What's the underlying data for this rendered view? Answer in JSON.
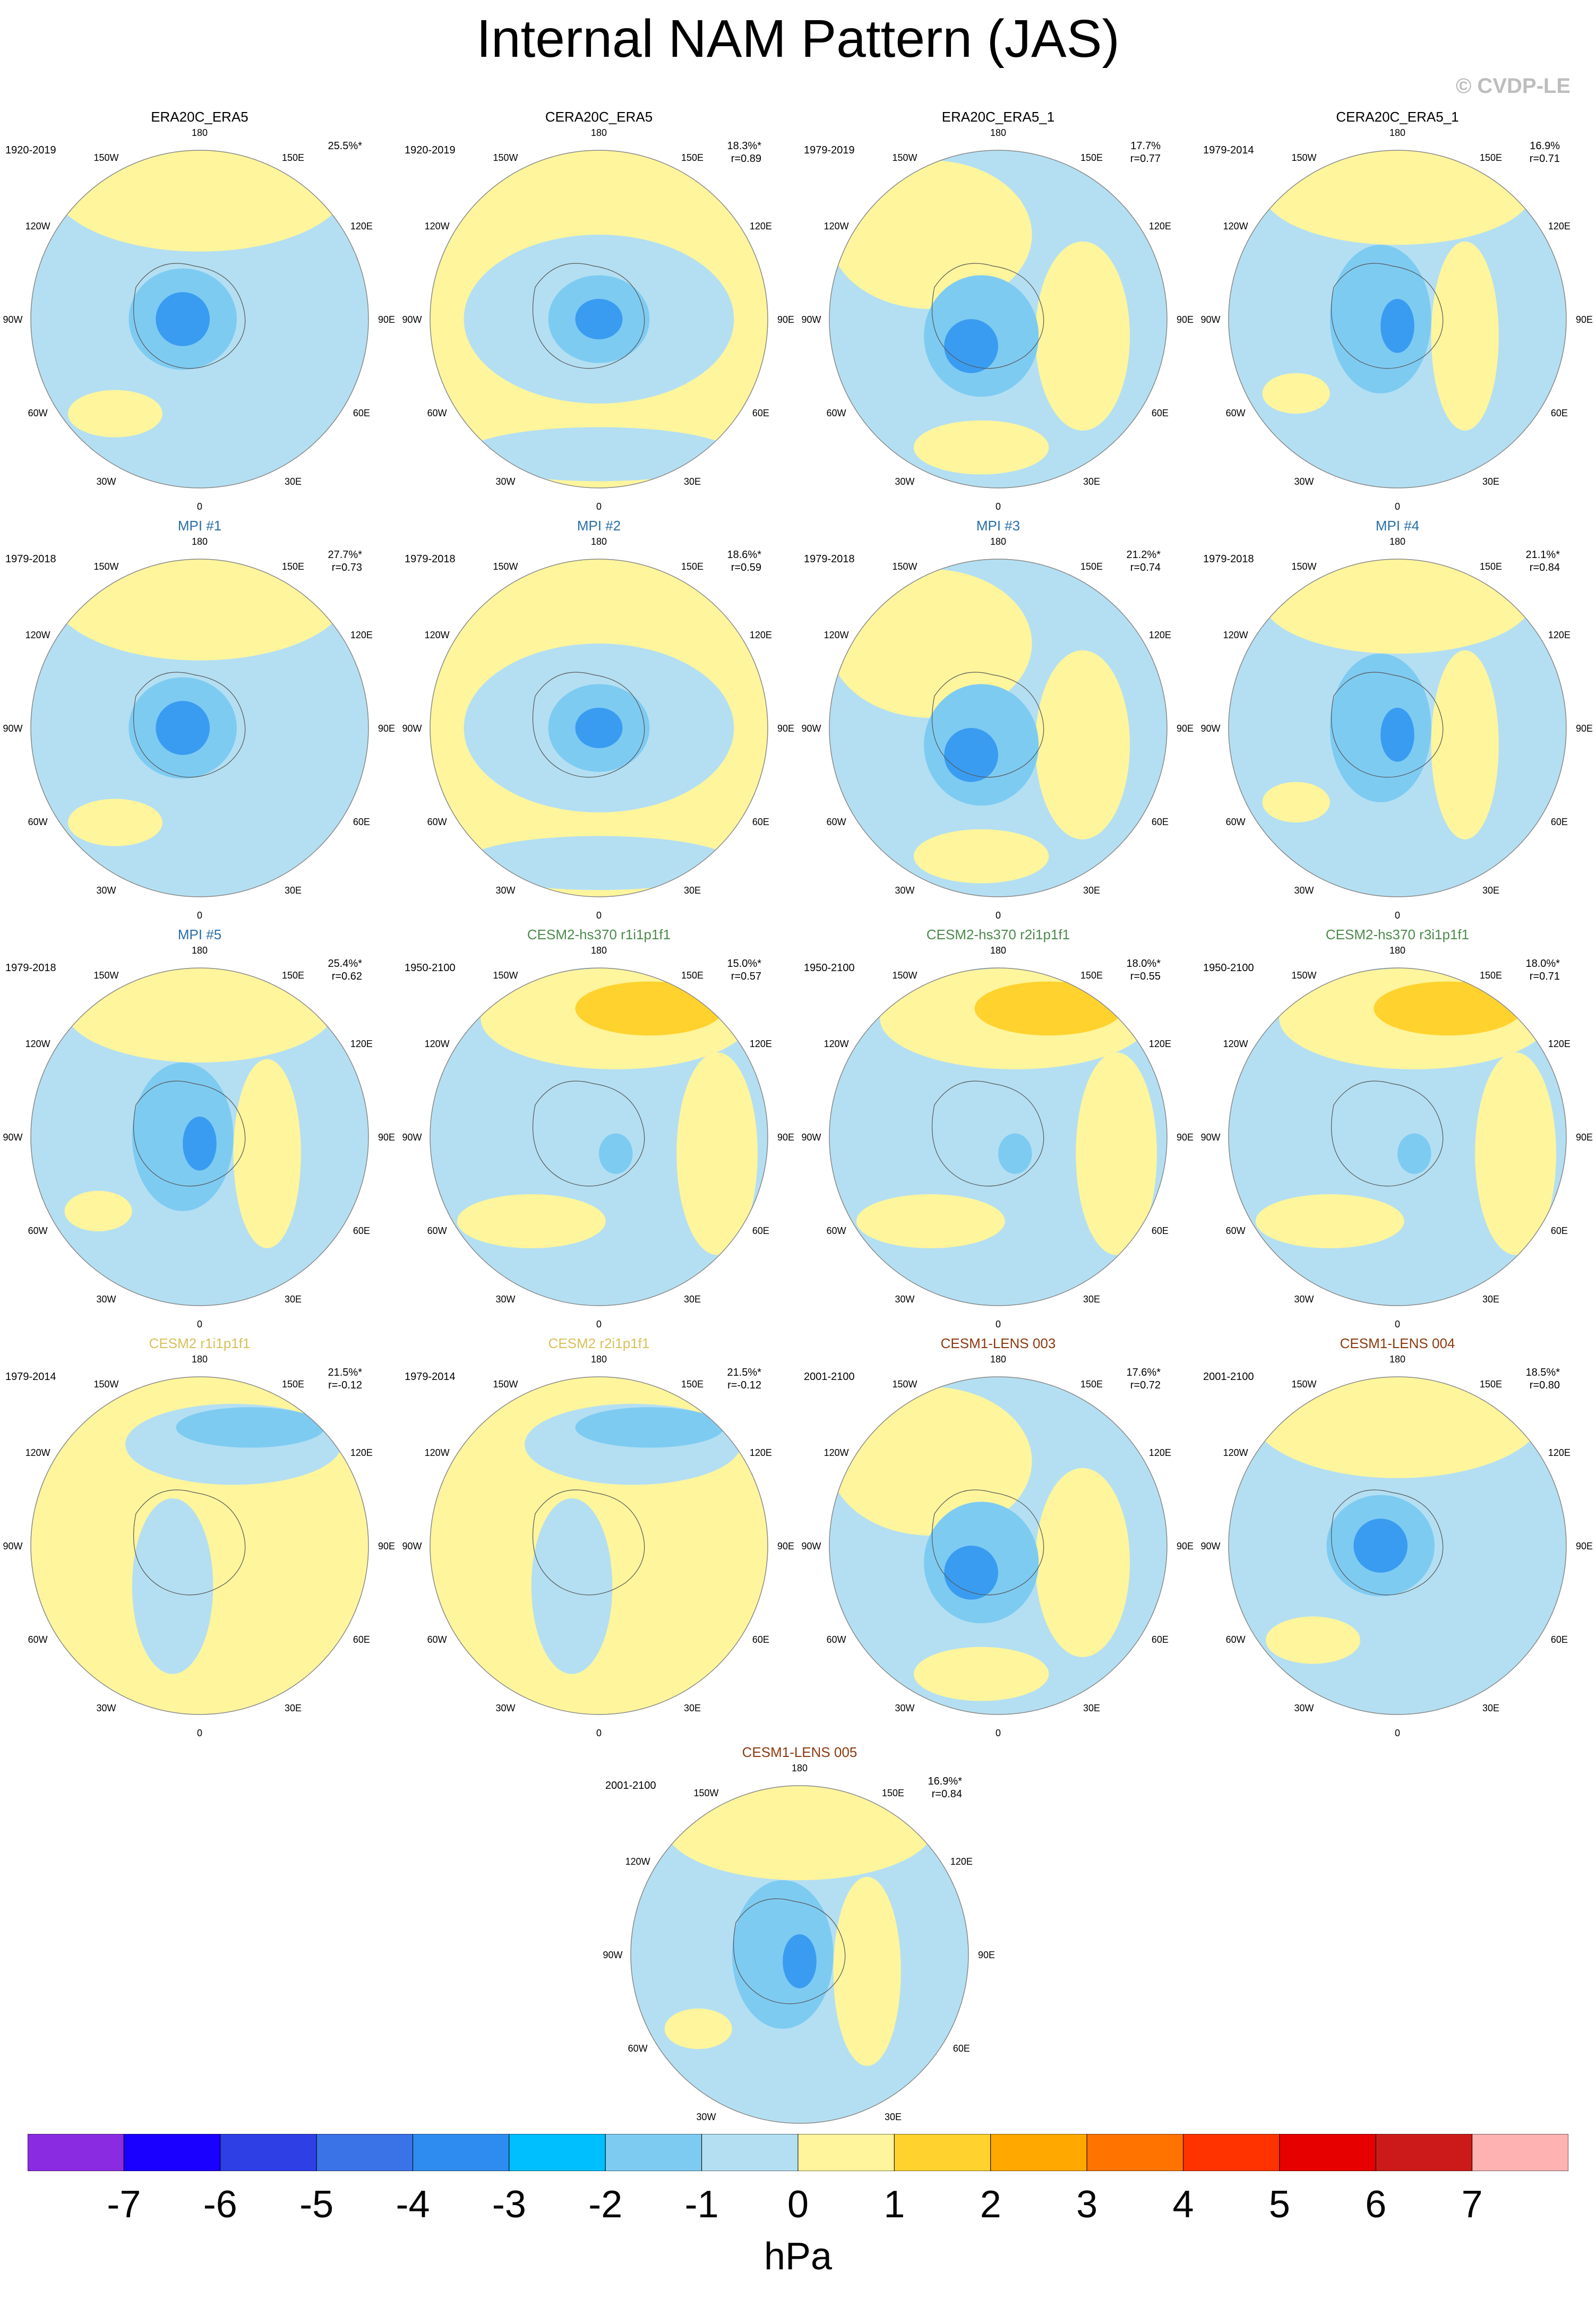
{
  "title": "Internal NAM Pattern (JAS)",
  "credit": "© CVDP-LE",
  "lon_labels": [
    "180",
    "150E",
    "120E",
    "90E",
    "60E",
    "30E",
    "0",
    "30W",
    "60W",
    "90W",
    "120W",
    "150W"
  ],
  "panels": [
    {
      "title": "ERA20C_ERA5",
      "title_color": "#000000",
      "period": "1920-2019",
      "pct": "25.5%*",
      "r": "",
      "style": 0,
      "dark": false
    },
    {
      "title": "CERA20C_ERA5",
      "title_color": "#000000",
      "period": "1920-2019",
      "pct": "18.3%*",
      "r": "r=0.89",
      "style": 1,
      "dark": false
    },
    {
      "title": "ERA20C_ERA5_1",
      "title_color": "#000000",
      "period": "1979-2019",
      "pct": "17.7%",
      "r": "r=0.77",
      "style": 2,
      "dark": false
    },
    {
      "title": "CERA20C_ERA5_1",
      "title_color": "#000000",
      "period": "1979-2014",
      "pct": "16.9%",
      "r": "r=0.71",
      "style": 3,
      "dark": false
    },
    {
      "title": "MPI #1",
      "title_color": "#2a6fa8",
      "period": "1979-2018",
      "pct": "27.7%*",
      "r": "r=0.73",
      "style": 0,
      "dark": false
    },
    {
      "title": "MPI #2",
      "title_color": "#2a6fa8",
      "period": "1979-2018",
      "pct": "18.6%*",
      "r": "r=0.59",
      "style": 1,
      "dark": false
    },
    {
      "title": "MPI #3",
      "title_color": "#2a6fa8",
      "period": "1979-2018",
      "pct": "21.2%*",
      "r": "r=0.74",
      "style": 2,
      "dark": false
    },
    {
      "title": "MPI #4",
      "title_color": "#2a6fa8",
      "period": "1979-2018",
      "pct": "21.1%*",
      "r": "r=0.84",
      "style": 3,
      "dark": false
    },
    {
      "title": "MPI #5",
      "title_color": "#2a6fa8",
      "period": "1979-2018",
      "pct": "25.4%*",
      "r": "r=0.62",
      "style": 3,
      "dark": false
    },
    {
      "title": "CESM2-hs370 r1i1p1f1",
      "title_color": "#4c8a4c",
      "period": "1950-2100",
      "pct": "15.0%*",
      "r": "r=0.57",
      "style": 4,
      "dark": false
    },
    {
      "title": "CESM2-hs370 r2i1p1f1",
      "title_color": "#4c8a4c",
      "period": "1950-2100",
      "pct": "18.0%*",
      "r": "r=0.55",
      "style": 4,
      "dark": false
    },
    {
      "title": "CESM2-hs370 r3i1p1f1",
      "title_color": "#4c8a4c",
      "period": "1950-2100",
      "pct": "18.0%*",
      "r": "r=0.71",
      "style": 4,
      "dark": false
    },
    {
      "title": "CESM2 r1i1p1f1",
      "title_color": "#d8c15a",
      "period": "1979-2014",
      "pct": "21.5%*",
      "r": "r=-0.12",
      "style": 5,
      "dark": false
    },
    {
      "title": "CESM2 r2i1p1f1",
      "title_color": "#d8c15a",
      "period": "1979-2014",
      "pct": "21.5%*",
      "r": "r=-0.12",
      "style": 5,
      "dark": false
    },
    {
      "title": "CESM1-LENS 003",
      "title_color": "#8b3a0f",
      "period": "2001-2100",
      "pct": "17.6%*",
      "r": "r=0.72",
      "style": 2,
      "dark": false
    },
    {
      "title": "CESM1-LENS 004",
      "title_color": "#8b3a0f",
      "period": "2001-2100",
      "pct": "18.5%*",
      "r": "r=0.80",
      "style": 0,
      "dark": false
    },
    {
      "title": "CESM1-LENS 005",
      "title_color": "#8b3a0f",
      "period": "2001-2100",
      "pct": "16.9%*",
      "r": "r=0.84",
      "style": 3,
      "dark": false
    }
  ],
  "colorbar": {
    "colors": [
      "#8a2be2",
      "#1a00ff",
      "#2e3fe6",
      "#3a72e8",
      "#2e8cf0",
      "#00bfff",
      "#7ecbf2",
      "#b4dff2",
      "#fff59d",
      "#ffd22e",
      "#ffa800",
      "#ff7300",
      "#ff3300",
      "#e60000",
      "#cc1a1a",
      "#ffb2b2"
    ],
    "labels": [
      "-7",
      "-6",
      "-5",
      "-4",
      "-3",
      "-2",
      "-1",
      "0",
      "1",
      "2",
      "3",
      "4",
      "5",
      "6",
      "7"
    ],
    "units": "hPa"
  }
}
